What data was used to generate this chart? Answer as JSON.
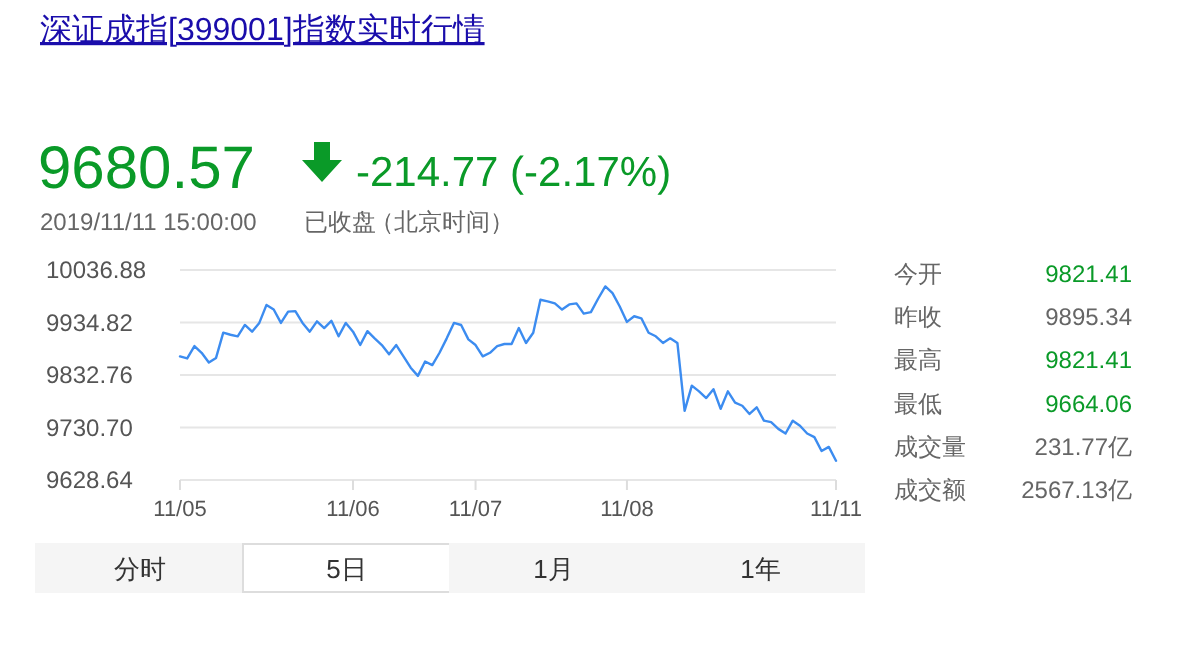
{
  "chart_data": {
    "type": "line",
    "title": "深证成指[399001]指数实时行情",
    "annotations": [
      "9680.57",
      "-214.77 (-2.17%)",
      "2019/11/11 15:00:00",
      "已收盘",
      "（北京时间）",
      "今开",
      "9821.41",
      "昨收",
      "9895.34",
      "最高",
      "9821.41",
      "最低",
      "9664.06",
      "成交量",
      "231.77亿",
      "成交额",
      "2567.13亿",
      "分时",
      "5日",
      "1月",
      "1年"
    ],
    "categories": [
      "11/05",
      null,
      null,
      null,
      null,
      null,
      null,
      null,
      null,
      null,
      null,
      null,
      null,
      null,
      null,
      null,
      null,
      null,
      null,
      null,
      null,
      null,
      null,
      null,
      "11/06",
      null,
      null,
      null,
      null,
      null,
      null,
      null,
      null,
      null,
      null,
      null,
      null,
      null,
      null,
      null,
      null,
      "11/07",
      null,
      null,
      null,
      null,
      null,
      null,
      null,
      null,
      null,
      null,
      null,
      null,
      null,
      null,
      null,
      null,
      null,
      null,
      null,
      null,
      "11/08",
      null,
      null,
      null,
      null,
      null,
      null,
      null,
      null,
      null,
      null,
      null,
      null,
      null,
      null,
      null,
      null,
      null,
      null,
      null,
      null,
      null,
      null,
      null,
      null,
      null,
      null,
      null,
      null,
      "11/11"
    ],
    "ylim": [
      9628.64,
      10036.88
    ],
    "yticks": [
      9628.64,
      {
        "value": 9730.7,
        "label": "9730.70"
      },
      9832.76,
      9934.82,
      10036.88
    ],
    "grid": "y",
    "series": [
      {
        "color": "#3c8cf0",
        "values": [
          9869,
          9865,
          9889,
          9876,
          9857,
          9866,
          9915,
          9911,
          9908,
          9930,
          9917,
          9934,
          9969,
          9960,
          9934,
          9956,
          9957,
          9934,
          9917,
          9937,
          9924,
          9938,
          9908,
          9934,
          9917,
          9891,
          9918,
          9904,
          9891,
          9873,
          9891,
          9869,
          9847,
          9831,
          9859,
          9852,
          9876,
          9904,
          9934,
          9930,
          9902,
          9891,
          9869,
          9876,
          9889,
          9893,
          9893,
          9924,
          9895,
          9915,
          9979,
          9976,
          9972,
          9960,
          9970,
          9972,
          9952,
          9955,
          9981,
          10005,
          9992,
          9966,
          9936,
          9947,
          9943,
          9915,
          9908,
          9895,
          9904,
          9895,
          9763,
          9812,
          9801,
          9788,
          9805,
          9767,
          9801,
          9779,
          9773,
          9757,
          9770,
          9744,
          9741,
          9728,
          9719,
          9744,
          9734,
          9719,
          9712,
          9685,
          9693,
          9666
        ]
      }
    ]
  }
}
